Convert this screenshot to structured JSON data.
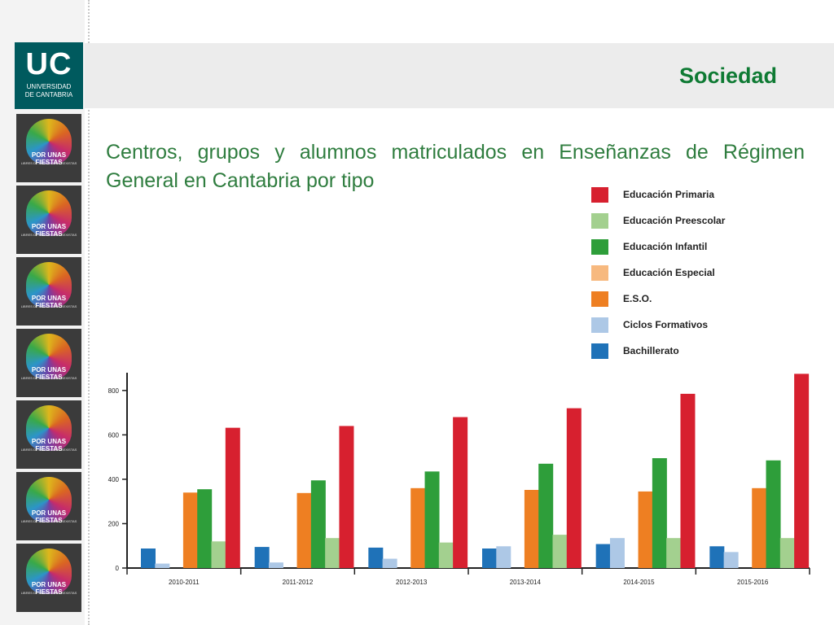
{
  "logo": {
    "mark": "UC",
    "line1": "UNIVERSIDAD",
    "line2": "DE CANTABRIA"
  },
  "header": {
    "section": "Sociedad"
  },
  "slide": {
    "title": "Centros, grupos y alumnos matriculados en Enseñanzas de Régimen General en Cantabria por tipo"
  },
  "thumbnails": [
    {
      "title": "POR UNAS FIESTAS",
      "subtitle": "LIBRES DE AGRESIONES SEXISTAS"
    },
    {
      "title": "POR UNAS FIESTAS",
      "subtitle": "LIBRES DE AGRESIONES SEXISTAS"
    },
    {
      "title": "POR UNAS FIESTAS",
      "subtitle": "LIBRES DE AGRESIONES SEXISTAS"
    },
    {
      "title": "POR UNAS FIESTAS",
      "subtitle": "LIBRES DE AGRESIONES SEXISTAS"
    },
    {
      "title": "POR UNAS FIESTAS",
      "subtitle": "LIBRES DE AGRESIONES SEXISTAS"
    },
    {
      "title": "POR UNAS FIESTAS",
      "subtitle": "LIBRES DE AGRESIONES SEXISTAS"
    },
    {
      "title": "POR UNAS FIESTAS",
      "subtitle": "LIBRES DE AGRESIONES SEXISTAS"
    }
  ],
  "chart_data": {
    "type": "bar",
    "categories": [
      "2010-2011",
      "2011-2012",
      "2012-2013",
      "2013-2014",
      "2014-2015",
      "2015-2016"
    ],
    "series": [
      {
        "name": "Educación Primaria",
        "color": "#d7202f",
        "values": [
          632,
          640,
          680,
          720,
          785,
          875
        ]
      },
      {
        "name": "Educación Preescolar",
        "color": "#a3d08f",
        "values": [
          120,
          135,
          115,
          150,
          135,
          135
        ]
      },
      {
        "name": "Educación Infantil",
        "color": "#2e9e3a",
        "values": [
          355,
          395,
          435,
          470,
          495,
          485
        ]
      },
      {
        "name": "Educación Especial",
        "color": "#f7b97f",
        "values": [
          0,
          0,
          0,
          0,
          0,
          0
        ]
      },
      {
        "name": "E.S.O.",
        "color": "#ee7f22",
        "values": [
          340,
          338,
          360,
          352,
          345,
          360
        ]
      },
      {
        "name": "Ciclos Formativos",
        "color": "#adc8e6",
        "values": [
          20,
          25,
          42,
          98,
          135,
          72
        ]
      },
      {
        "name": "Bachillerato",
        "color": "#1f72b8",
        "values": [
          88,
          95,
          92,
          88,
          108,
          98
        ]
      }
    ],
    "bar_order": [
      "Bachillerato",
      "Ciclos Formativos",
      "Educación Especial",
      "E.S.O.",
      "Educación Infantil",
      "Educación Preescolar",
      "Educación Primaria"
    ],
    "ylim": [
      0,
      880
    ],
    "yticks": [
      0,
      200,
      400,
      600,
      800
    ],
    "grid": false,
    "legend_position": "top-right",
    "title": "",
    "xlabel": "",
    "ylabel": ""
  }
}
